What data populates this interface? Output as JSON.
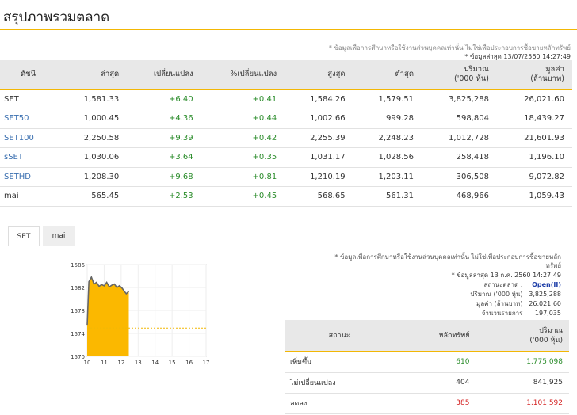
{
  "page": {
    "title": "สรุปภาพรวมตลาด",
    "note_disclaimer": "* ข้อมูลเพื่อการศึกษาหรือใช้งานส่วนบุคคลเท่านั้น ไม่ใช่เพื่อประกอบการซื้อขายหลักทรัพย์",
    "note_updated": "* ข้อมูลล่าสุด 13/07/2560 14:27:49"
  },
  "summary_table": {
    "headers": [
      "ดัชนี",
      "ล่าสุด",
      "เปลี่ยนแปลง",
      "%เปลี่ยนแปลง",
      "สูงสุด",
      "ต่ำสุด",
      "ปริมาณ\n('000 หุ้น)",
      "มูลค่า\n(ล้านบาท)"
    ],
    "rows": [
      {
        "name": "SET",
        "link": false,
        "last": "1,581.33",
        "change": "+6.40",
        "pct": "+0.41",
        "high": "1,584.26",
        "low": "1,579.51",
        "volume": "3,825,288",
        "value": "26,021.60"
      },
      {
        "name": "SET50",
        "link": true,
        "last": "1,000.45",
        "change": "+4.36",
        "pct": "+0.44",
        "high": "1,002.66",
        "low": "999.28",
        "volume": "598,804",
        "value": "18,439.27"
      },
      {
        "name": "SET100",
        "link": true,
        "last": "2,250.58",
        "change": "+9.39",
        "pct": "+0.42",
        "high": "2,255.39",
        "low": "2,248.23",
        "volume": "1,012,728",
        "value": "21,601.93"
      },
      {
        "name": "sSET",
        "link": true,
        "last": "1,030.06",
        "change": "+3.64",
        "pct": "+0.35",
        "high": "1,031.17",
        "low": "1,028.56",
        "volume": "258,418",
        "value": "1,196.10"
      },
      {
        "name": "SETHD",
        "link": true,
        "last": "1,208.30",
        "change": "+9.68",
        "pct": "+0.81",
        "high": "1,210.19",
        "low": "1,203.11",
        "volume": "306,508",
        "value": "9,072.82"
      },
      {
        "name": "mai",
        "link": false,
        "last": "565.45",
        "change": "+2.53",
        "pct": "+0.45",
        "high": "568.65",
        "low": "561.31",
        "volume": "468,966",
        "value": "1,059.43"
      }
    ]
  },
  "tabs": [
    {
      "label": "SET",
      "active": true
    },
    {
      "label": "mai",
      "active": false
    }
  ],
  "chart_data": {
    "type": "area",
    "title": "",
    "x_ticks": [
      "10",
      "11",
      "12",
      "13",
      "14",
      "15",
      "16",
      "17"
    ],
    "y_ticks": [
      "1570",
      "1574",
      "1578",
      "1582",
      "1586"
    ],
    "ylim": [
      1570,
      1586
    ],
    "xlim": [
      10,
      17
    ],
    "prior_close": 1574.93,
    "series": [
      {
        "x": [
          10.0,
          10.1,
          10.25,
          10.4,
          10.55,
          10.7,
          10.85,
          11.0,
          11.15,
          11.3,
          11.45,
          11.6,
          11.75,
          11.9,
          12.05,
          12.2,
          12.3,
          12.45
        ],
        "y": [
          1575.5,
          1583.0,
          1583.8,
          1582.6,
          1582.9,
          1582.2,
          1582.5,
          1582.3,
          1582.9,
          1582.1,
          1582.4,
          1582.6,
          1582.0,
          1582.3,
          1581.9,
          1581.3,
          1580.9,
          1581.33
        ]
      }
    ],
    "fill_color": "#fbb800",
    "line_color": "#666666",
    "reference_color": "#f2b705"
  },
  "info": {
    "disclaimer": "* ข้อมูลเพื่อการศึกษาหรือใช้งานส่วนบุคคลเท่านั้น ไม่ใช่เพื่อประกอบการซื้อขายหลัก",
    "disclaimer2": "ทรัพย์",
    "updated": "* ข้อมูลล่าสุด 13 ก.ค. 2560 14:27:49",
    "market_status_label": "สถานะตลาด :",
    "market_status_value": "Open(II)",
    "volume_label": "ปริมาณ ('000 หุ้น)",
    "volume_value": "3,825,288",
    "value_label": "มูลค่า (ล้านบาท)",
    "value_value": "26,021.60",
    "trades_label": "จำนวนรายการ",
    "trades_value": "197,035"
  },
  "breadth_table": {
    "headers": [
      "สถานะ",
      "หลักทรัพย์",
      "ปริมาณ\n('000 หุ้น)"
    ],
    "rows": [
      {
        "status": "เพิ่มขึ้น",
        "count": "610",
        "volume": "1,775,098",
        "tone": "pos"
      },
      {
        "status": "ไม่เปลี่ยนแปลง",
        "count": "404",
        "volume": "841,925",
        "tone": "neutral"
      },
      {
        "status": "ลดลง",
        "count": "385",
        "volume": "1,101,592",
        "tone": "neg"
      }
    ]
  }
}
